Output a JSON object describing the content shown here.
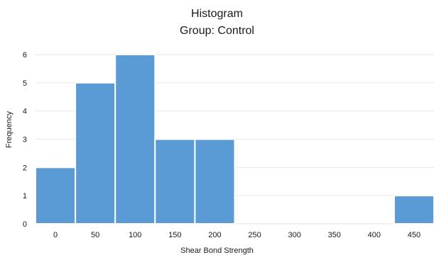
{
  "chart_data": {
    "type": "bar",
    "title": "Histogram",
    "subtitle": "Group: Control",
    "xlabel": "Shear Bond Strength",
    "ylabel": "Frequency",
    "categories": [
      "0",
      "50",
      "100",
      "150",
      "200",
      "250",
      "300",
      "350",
      "400",
      "450"
    ],
    "values": [
      2,
      5,
      6,
      3,
      3,
      0,
      0,
      0,
      0,
      1
    ],
    "yticks": [
      0,
      1,
      2,
      3,
      4,
      5,
      6
    ],
    "ylim": [
      0,
      6
    ],
    "grid": true,
    "bar_color": "#5b9bd5"
  }
}
